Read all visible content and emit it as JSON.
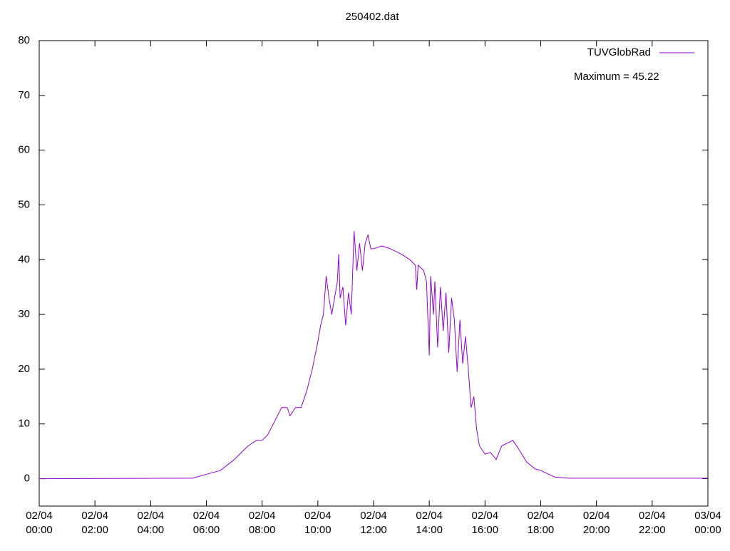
{
  "chart_data": {
    "type": "line",
    "title": "250402.dat",
    "annotation": "Maximum = 45.22",
    "xlim": [
      0,
      24
    ],
    "xticks": [
      {
        "value": 0,
        "label": "02/04\n00:00"
      },
      {
        "value": 2,
        "label": "02/04\n02:00"
      },
      {
        "value": 4,
        "label": "02/04\n04:00"
      },
      {
        "value": 6,
        "label": "02/04\n06:00"
      },
      {
        "value": 8,
        "label": "02/04\n08:00"
      },
      {
        "value": 10,
        "label": "02/04\n10:00"
      },
      {
        "value": 12,
        "label": "02/04\n12:00"
      },
      {
        "value": 14,
        "label": "02/04\n14:00"
      },
      {
        "value": 16,
        "label": "02/04\n16:00"
      },
      {
        "value": 18,
        "label": "02/04\n18:00"
      },
      {
        "value": 20,
        "label": "02/04\n20:00"
      },
      {
        "value": 22,
        "label": "02/04\n22:00"
      },
      {
        "value": 24,
        "label": "03/04\n00:00"
      }
    ],
    "ylim": [
      -5,
      80
    ],
    "yticks": [
      0,
      10,
      20,
      30,
      40,
      50,
      60,
      70,
      80
    ],
    "legend": "top-right",
    "x": [
      0,
      5.5,
      6,
      6.5,
      7,
      7.5,
      7.8,
      8,
      8.2,
      8.5,
      8.7,
      8.9,
      9,
      9.2,
      9.4,
      9.6,
      9.8,
      10,
      10.1,
      10.2,
      10.3,
      10.4,
      10.5,
      10.6,
      10.7,
      10.75,
      10.8,
      10.9,
      11,
      11.1,
      11.2,
      11.3,
      11.4,
      11.5,
      11.6,
      11.7,
      11.8,
      11.9,
      12,
      12.3,
      12.6,
      13,
      13.3,
      13.5,
      13.55,
      13.6,
      13.8,
      13.9,
      14,
      14.05,
      14.15,
      14.2,
      14.3,
      14.4,
      14.5,
      14.6,
      14.7,
      14.8,
      14.9,
      15,
      15.1,
      15.2,
      15.3,
      15.4,
      15.5,
      15.6,
      15.7,
      15.8,
      16,
      16.2,
      16.4,
      16.6,
      16.8,
      17,
      17.2,
      17.5,
      17.8,
      18,
      18.5,
      19,
      20,
      24
    ],
    "series": [
      {
        "name": "TUVGlobRad",
        "color": "#9400d3",
        "values": [
          0,
          0.1,
          0.8,
          1.5,
          3.5,
          6,
          7,
          7,
          8,
          11,
          13,
          13,
          11.5,
          13,
          13,
          16,
          20,
          25,
          28,
          30,
          37,
          33,
          30,
          33,
          36,
          41,
          33,
          35,
          28,
          34,
          30,
          45.22,
          38,
          43,
          38,
          43,
          44.5,
          42,
          42,
          42.5,
          42,
          41,
          40,
          39,
          34.5,
          39,
          38,
          36,
          22.5,
          37,
          30,
          36,
          24,
          35,
          27,
          34,
          23,
          33,
          29,
          19.5,
          29,
          21,
          26,
          20,
          13,
          15,
          9,
          6,
          4.5,
          4.8,
          3.5,
          6,
          6.5,
          7,
          5.5,
          3,
          1.8,
          1.5,
          0.3,
          0.1,
          0.1,
          0.1
        ]
      }
    ]
  }
}
